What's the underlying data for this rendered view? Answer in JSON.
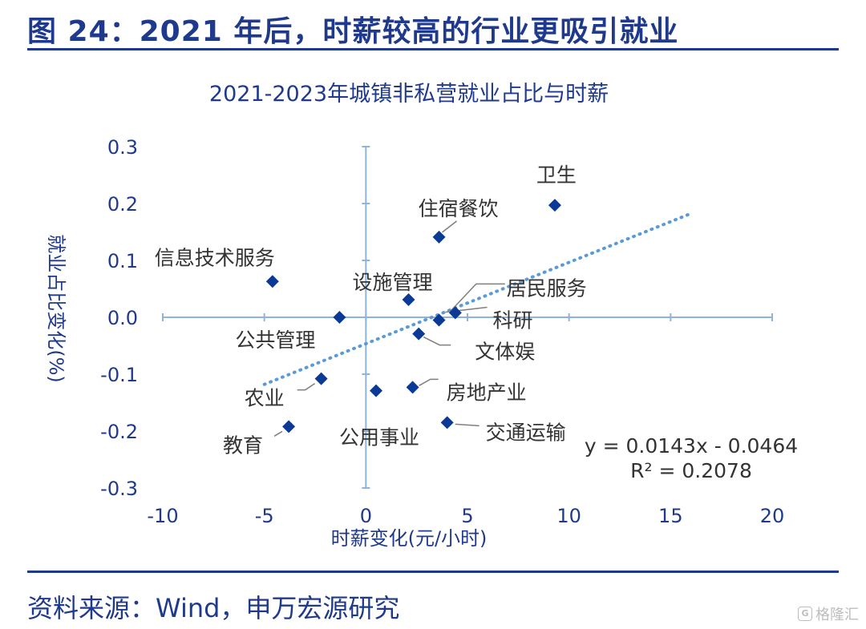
{
  "header": {
    "figure_title": "图 24：2021 年后，时薪较高的行业更吸引就业"
  },
  "footer": {
    "source": "资料来源：Wind，申万宏源研究"
  },
  "watermark": {
    "logo": "G",
    "text": "格隆汇"
  },
  "colors": {
    "brand": "#1F3A8C",
    "axis": "#8FB4DC",
    "point": "#0B3A96",
    "trend": "#5B9BD5",
    "label": "#333333",
    "leader": "#7F7F7F"
  },
  "chart_data": {
    "type": "scatter",
    "title": "2021-2023年城镇非私营就业占比与时薪",
    "xlabel": "时薪变化(元/小时)",
    "ylabel": "就业占比变化(%)",
    "xlim": [
      -10,
      20
    ],
    "ylim": [
      -0.3,
      0.3
    ],
    "xticks": [
      -10,
      -5,
      0,
      5,
      10,
      15,
      20
    ],
    "yticks": [
      -0.3,
      -0.2,
      -0.1,
      0.0,
      0.1,
      0.2,
      0.3
    ],
    "xtick_labels": [
      "-10",
      "-5",
      "0",
      "5",
      "10",
      "15",
      "20"
    ],
    "ytick_labels": [
      "-0.3",
      "-0.2",
      "-0.1",
      "0.0",
      "0.1",
      "0.2",
      "0.3"
    ],
    "points": [
      {
        "label": "卫生",
        "x": 9.3,
        "y": 0.197
      },
      {
        "label": "住宿餐饮",
        "x": 3.6,
        "y": 0.141
      },
      {
        "label": "信息技术服务",
        "x": -4.6,
        "y": 0.063
      },
      {
        "label": "设施管理",
        "x": 2.1,
        "y": 0.031
      },
      {
        "label": "居民服务",
        "x": 4.4,
        "y": 0.008
      },
      {
        "label": "科研",
        "x": 3.6,
        "y": -0.005
      },
      {
        "label": "公共管理",
        "x": -1.3,
        "y": 0.0
      },
      {
        "label": "文体娱",
        "x": 2.6,
        "y": -0.029
      },
      {
        "label": "农业",
        "x": -2.2,
        "y": -0.108
      },
      {
        "label": "房地产业",
        "x": 2.3,
        "y": -0.123
      },
      {
        "label": "公用事业",
        "x": 0.5,
        "y": -0.129
      },
      {
        "label": "交通运输",
        "x": 4.0,
        "y": -0.185
      },
      {
        "label": "教育",
        "x": -3.8,
        "y": -0.192
      }
    ],
    "trendline": {
      "equation": "y = 0.0143x - 0.0464",
      "r2": "R² = 0.2078",
      "x_range": [
        -5,
        16
      ],
      "slope": 0.0143,
      "intercept": -0.0464
    }
  }
}
